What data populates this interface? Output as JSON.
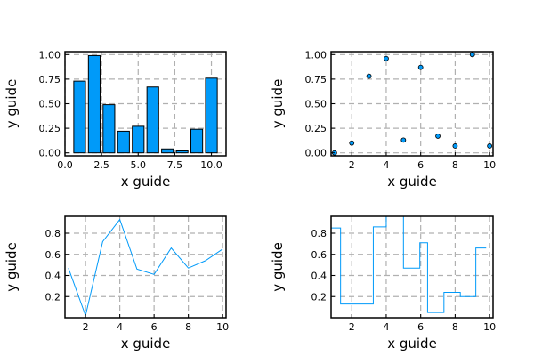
{
  "colors": {
    "series": "#009af9",
    "grid": "#b0b0b0",
    "frame": "#000000",
    "marker_stroke": "#000000"
  },
  "chart_data": [
    {
      "type": "bar",
      "xlabel": "x guide",
      "ylabel": "y guide",
      "xlim": [
        0,
        11
      ],
      "ylim": [
        -0.03,
        1.03
      ],
      "xticks": [
        0.0,
        2.5,
        5.0,
        7.5,
        10.0
      ],
      "xtick_labels": [
        "0.0",
        "2.5",
        "5.0",
        "7.5",
        "10.0"
      ],
      "yticks": [
        0.0,
        0.25,
        0.5,
        0.75,
        1.0
      ],
      "ytick_labels": [
        "0.00",
        "0.25",
        "0.50",
        "0.75",
        "1.00"
      ],
      "grid": true,
      "legend": false,
      "x": [
        1,
        2,
        3,
        4,
        5,
        6,
        7,
        8,
        9,
        10
      ],
      "values": [
        0.73,
        0.99,
        0.49,
        0.22,
        0.27,
        0.67,
        0.04,
        0.02,
        0.24,
        0.76
      ]
    },
    {
      "type": "scatter",
      "xlabel": "x guide",
      "ylabel": "y guide",
      "xlim": [
        0.8,
        10.2
      ],
      "ylim": [
        -0.03,
        1.03
      ],
      "xticks": [
        2,
        4,
        6,
        8,
        10
      ],
      "xtick_labels": [
        "2",
        "4",
        "6",
        "8",
        "10"
      ],
      "yticks": [
        0.0,
        0.25,
        0.5,
        0.75,
        1.0
      ],
      "ytick_labels": [
        "0.00",
        "0.25",
        "0.50",
        "0.75",
        "1.00"
      ],
      "grid": true,
      "legend": false,
      "x": [
        1,
        2,
        3,
        4,
        5,
        6,
        7,
        8,
        9,
        10
      ],
      "values": [
        0.0,
        0.1,
        0.78,
        0.96,
        0.13,
        0.87,
        0.17,
        0.07,
        1.0,
        0.07
      ]
    },
    {
      "type": "line",
      "xlabel": "x guide",
      "ylabel": "y guide",
      "xlim": [
        0.8,
        10.2
      ],
      "ylim": [
        0.0,
        0.96
      ],
      "xticks": [
        2,
        4,
        6,
        8,
        10
      ],
      "xtick_labels": [
        "2",
        "4",
        "6",
        "8",
        "10"
      ],
      "yticks": [
        0.2,
        0.4,
        0.6,
        0.8
      ],
      "ytick_labels": [
        "0.2",
        "0.4",
        "0.6",
        "0.8"
      ],
      "grid": true,
      "legend": false,
      "x": [
        1,
        2,
        3,
        4,
        5,
        6,
        7,
        8,
        9,
        10
      ],
      "values": [
        0.47,
        0.02,
        0.72,
        0.93,
        0.46,
        0.41,
        0.66,
        0.47,
        0.54,
        0.65
      ]
    },
    {
      "type": "step",
      "xlabel": "x guide",
      "ylabel": "y guide",
      "xlim": [
        0.8,
        10.2
      ],
      "ylim": [
        0.0,
        0.96
      ],
      "xticks": [
        2,
        4,
        6,
        8,
        10
      ],
      "xtick_labels": [
        "2",
        "4",
        "6",
        "8",
        "10"
      ],
      "yticks": [
        0.2,
        0.4,
        0.6,
        0.8
      ],
      "ytick_labels": [
        "0.2",
        "0.4",
        "0.6",
        "0.8"
      ],
      "grid": true,
      "legend": false,
      "x": [
        0.8,
        1.35,
        2.2,
        3.25,
        4.0,
        5.0,
        5.95,
        6.4,
        7.35,
        8.3,
        9.2,
        9.8
      ],
      "values": [
        0.85,
        0.13,
        0.13,
        0.86,
        0.96,
        0.47,
        0.71,
        0.05,
        0.24,
        0.2,
        0.66,
        0.66
      ]
    }
  ]
}
